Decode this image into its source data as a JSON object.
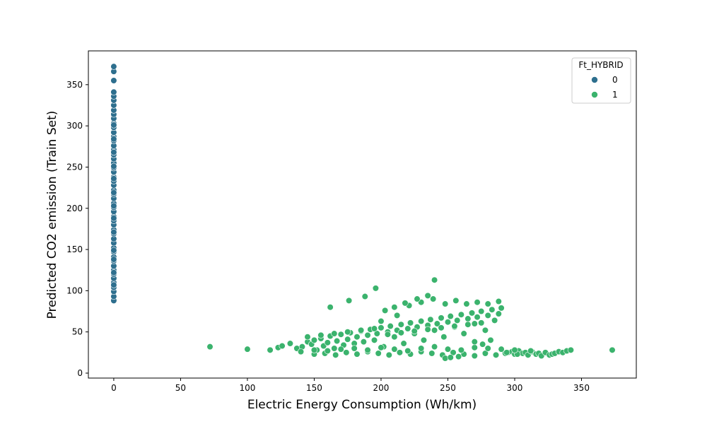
{
  "chart_data": {
    "type": "scatter",
    "title": "",
    "xlabel": "Electric Energy Consumption (Wh/km)",
    "ylabel": "Predicted CO2 emission (Train Set)",
    "xlim": [
      -19,
      391
    ],
    "ylim": [
      -6,
      391
    ],
    "xticks": [
      0,
      50,
      100,
      150,
      200,
      250,
      300,
      350
    ],
    "yticks": [
      0,
      50,
      100,
      150,
      200,
      250,
      300,
      350
    ],
    "grid": false,
    "legend": {
      "title": "Ft_HYBRID",
      "placement": "top-right",
      "entries": [
        {
          "label": "0",
          "color": "#2e6f8e"
        },
        {
          "label": "1",
          "color": "#3bb36d"
        }
      ]
    },
    "series": [
      {
        "name": "0",
        "color": "#2e6f8e",
        "x": [
          0,
          0,
          0,
          0,
          0,
          0,
          0,
          0,
          0,
          0,
          0,
          0,
          0,
          0,
          0,
          0,
          0,
          0,
          0,
          0,
          0,
          0,
          0,
          0,
          0,
          0,
          0,
          0,
          0,
          0,
          0,
          0,
          0,
          0,
          0,
          0,
          0,
          0,
          0,
          0,
          0,
          0,
          0,
          0,
          0,
          0,
          0,
          0,
          0,
          0,
          0,
          0,
          0,
          0,
          0,
          0,
          0,
          0,
          0,
          0,
          0,
          0,
          0,
          0
        ],
        "y": [
          88,
          93,
          99,
          104,
          110,
          115,
          120,
          125,
          130,
          136,
          141,
          147,
          152,
          158,
          163,
          169,
          174,
          180,
          185,
          190,
          196,
          201,
          206,
          212,
          217,
          222,
          228,
          233,
          238,
          244,
          249,
          255,
          260,
          265,
          271,
          276,
          282,
          287,
          292,
          298,
          303,
          309,
          314,
          319,
          325,
          331,
          336,
          341,
          355,
          366,
          372,
          107,
          122,
          138,
          149,
          171,
          188,
          203,
          219,
          236,
          251,
          268,
          284,
          301
        ]
      },
      {
        "name": "1",
        "color": "#3bb36d",
        "x": [
          72,
          100,
          117,
          123,
          126,
          132,
          137,
          141,
          145,
          148,
          150,
          152,
          155,
          157,
          160,
          162,
          165,
          167,
          170,
          172,
          175,
          177,
          180,
          182,
          185,
          187,
          190,
          192,
          195,
          197,
          200,
          202,
          205,
          207,
          210,
          212,
          215,
          217,
          220,
          222,
          225,
          227,
          230,
          232,
          235,
          237,
          240,
          242,
          245,
          247,
          250,
          252,
          255,
          257,
          260,
          262,
          265,
          268,
          270,
          272,
          275,
          278,
          280,
          283,
          285,
          288,
          290,
          293,
          295,
          298,
          300,
          303,
          306,
          308,
          310,
          313,
          316,
          318,
          320,
          323,
          326,
          328,
          330,
          333,
          336,
          339,
          342,
          373,
          150,
          158,
          166,
          174,
          182,
          190,
          198,
          206,
          214,
          222,
          230,
          238,
          246,
          254,
          262,
          270,
          278,
          286,
          294,
          302,
          140,
          150,
          160,
          170,
          180,
          190,
          200,
          210,
          220,
          230,
          240,
          250,
          260,
          270,
          280,
          290,
          300,
          312,
          145,
          155,
          165,
          175,
          185,
          195,
          205,
          215,
          225,
          235,
          245,
          255,
          265,
          275,
          162,
          176,
          188,
          196,
          203,
          212,
          221,
          230,
          239,
          248,
          256,
          264,
          272,
          280,
          288,
          240,
          235,
          227,
          218,
          210,
          200,
          270,
          276,
          282,
          248,
          252,
          258
        ],
        "y": [
          32,
          29,
          28,
          31,
          33,
          36,
          30,
          32,
          38,
          35,
          40,
          28,
          42,
          33,
          37,
          45,
          30,
          39,
          47,
          34,
          41,
          49,
          36,
          44,
          51,
          38,
          46,
          53,
          40,
          48,
          55,
          32,
          50,
          57,
          44,
          52,
          59,
          36,
          54,
          61,
          48,
          56,
          63,
          40,
          58,
          65,
          52,
          60,
          67,
          44,
          62,
          69,
          56,
          64,
          71,
          48,
          66,
          73,
          60,
          68,
          75,
          52,
          70,
          77,
          64,
          72,
          79,
          24,
          25,
          26,
          23,
          27,
          24,
          25,
          22,
          26,
          23,
          24,
          21,
          25,
          22,
          23,
          24,
          26,
          25,
          27,
          28,
          28,
          23,
          24,
          22,
          25,
          23,
          26,
          24,
          22,
          25,
          23,
          26,
          24,
          22,
          25,
          23,
          21,
          24,
          22,
          25,
          23,
          26,
          28,
          27,
          29,
          30,
          28,
          31,
          29,
          27,
          30,
          32,
          29,
          28,
          31,
          30,
          29,
          28,
          27,
          44,
          46,
          48,
          50,
          52,
          54,
          47,
          49,
          51,
          53,
          55,
          57,
          59,
          61,
          80,
          88,
          93,
          103,
          76,
          70,
          82,
          86,
          90,
          84,
          88,
          84,
          86,
          84,
          87,
          113,
          94,
          90,
          85,
          80,
          63,
          38,
          35,
          40,
          18,
          19,
          20
        ],
        "y_extra_note": ""
      }
    ]
  }
}
